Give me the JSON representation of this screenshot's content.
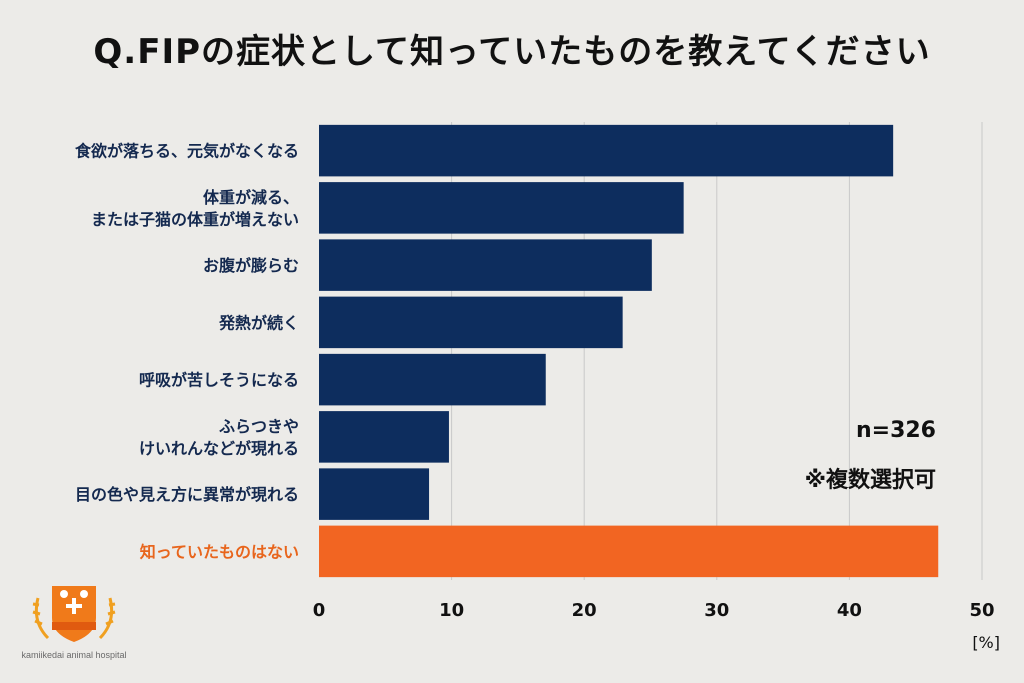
{
  "title": "Q.FIPの症状として知っていたものを教えてください",
  "notes": {
    "sample_size": "n=326",
    "multiple_choice": "※複数選択可"
  },
  "unit_label": "[%]",
  "logo": {
    "text": "kamiikedai animal hospital",
    "icon": "hospital-crest-icon"
  },
  "colors": {
    "bar": "#0d2d5e",
    "highlight_bar": "#f26522",
    "highlight_label": "#e8651c",
    "grid": "#c9c9c9",
    "background": "#ecebe8"
  },
  "chart_data": {
    "type": "bar",
    "orientation": "horizontal",
    "title": "Q.FIPの症状として知っていたものを教えてください",
    "xlabel": "[%]",
    "ylabel": "",
    "xlim": [
      0,
      50
    ],
    "xticks": [
      0,
      10,
      20,
      30,
      40,
      50
    ],
    "grid": true,
    "categories": [
      [
        "食欲が落ちる、元気がなくなる"
      ],
      [
        "体重が減る、",
        "または子猫の体重が増えない"
      ],
      [
        "お腹が膨らむ"
      ],
      [
        "発熱が続く"
      ],
      [
        "呼吸が苦しそうになる"
      ],
      [
        "ふらつきや",
        "けいれんなどが現れる"
      ],
      [
        "目の色や見え方に異常が現れる"
      ],
      [
        "知っていたものはない"
      ]
    ],
    "values": [
      43.3,
      27.5,
      25.1,
      22.9,
      17.1,
      9.8,
      8.3,
      46.7
    ],
    "highlight_index": 7
  }
}
